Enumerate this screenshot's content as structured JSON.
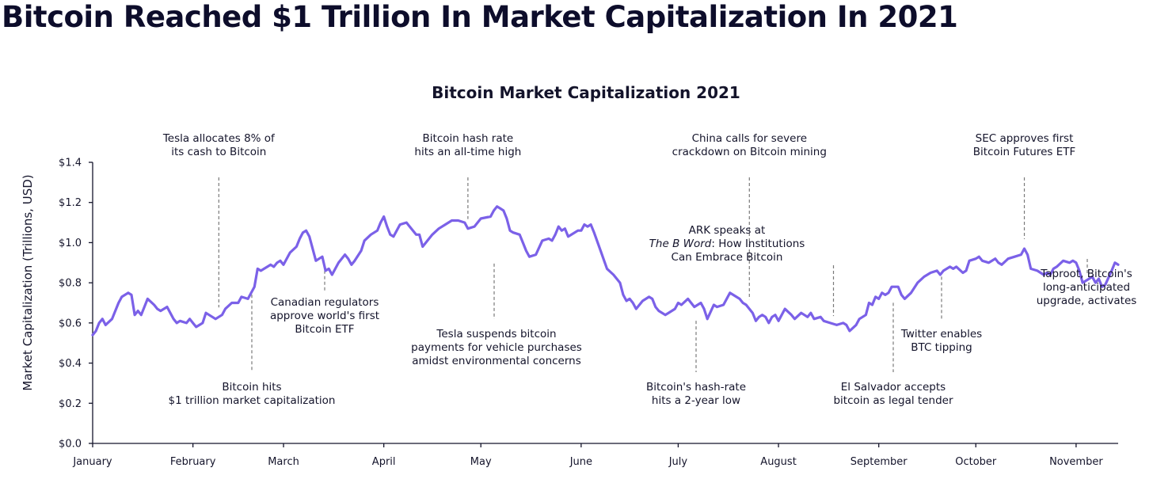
{
  "page": {
    "title": "Bitcoin Reached $1 Trillion In Market Capitalization In 2021"
  },
  "colors": {
    "series": "#7b61e8",
    "text": "#14142b",
    "leader": "#7a7a7a"
  },
  "chart_data": {
    "type": "line",
    "title": "Bitcoin Market Capitalization 2021",
    "xlabel": "",
    "ylabel": "Market Capitalization (Trillions, USD)",
    "ylim": [
      0,
      1.4
    ],
    "xlim": [
      1,
      318
    ],
    "y_ticks": [
      {
        "value": 0.0,
        "label": "$0.0"
      },
      {
        "value": 0.2,
        "label": "$0.2"
      },
      {
        "value": 0.4,
        "label": "$0.4"
      },
      {
        "value": 0.6,
        "label": "$0.6"
      },
      {
        "value": 0.8,
        "label": "$0.8"
      },
      {
        "value": 1.0,
        "label": "$1.0"
      },
      {
        "value": 1.2,
        "label": "$1.2"
      },
      {
        "value": 1.4,
        "label": "$1.4"
      }
    ],
    "x_ticks": [
      {
        "day": 1,
        "label": "January"
      },
      {
        "day": 32,
        "label": "February"
      },
      {
        "day": 60,
        "label": "March"
      },
      {
        "day": 91,
        "label": "April"
      },
      {
        "day": 121,
        "label": "May"
      },
      {
        "day": 152,
        "label": "June"
      },
      {
        "day": 182,
        "label": "July"
      },
      {
        "day": 213,
        "label": "August"
      },
      {
        "day": 244,
        "label": "September"
      },
      {
        "day": 274,
        "label": "October"
      },
      {
        "day": 305,
        "label": "November"
      }
    ],
    "grid": false,
    "legend": "none",
    "series": [
      {
        "points": [
          [
            1,
            0.54
          ],
          [
            2,
            0.56
          ],
          [
            3,
            0.6
          ],
          [
            4,
            0.62
          ],
          [
            5,
            0.59
          ],
          [
            7,
            0.62
          ],
          [
            9,
            0.7
          ],
          [
            10,
            0.73
          ],
          [
            12,
            0.75
          ],
          [
            13,
            0.74
          ],
          [
            14,
            0.64
          ],
          [
            15,
            0.66
          ],
          [
            16,
            0.64
          ],
          [
            18,
            0.72
          ],
          [
            20,
            0.69
          ],
          [
            21,
            0.67
          ],
          [
            22,
            0.66
          ],
          [
            24,
            0.68
          ],
          [
            26,
            0.62
          ],
          [
            27,
            0.6
          ],
          [
            28,
            0.61
          ],
          [
            30,
            0.6
          ],
          [
            31,
            0.62
          ],
          [
            32,
            0.6
          ],
          [
            33,
            0.58
          ],
          [
            35,
            0.6
          ],
          [
            36,
            0.65
          ],
          [
            38,
            0.63
          ],
          [
            39,
            0.62
          ],
          [
            41,
            0.64
          ],
          [
            42,
            0.67
          ],
          [
            44,
            0.7
          ],
          [
            46,
            0.7
          ],
          [
            47,
            0.73
          ],
          [
            49,
            0.72
          ],
          [
            51,
            0.78
          ],
          [
            52,
            0.87
          ],
          [
            53,
            0.86
          ],
          [
            55,
            0.88
          ],
          [
            56,
            0.89
          ],
          [
            57,
            0.88
          ],
          [
            58,
            0.9
          ],
          [
            59,
            0.91
          ],
          [
            60,
            0.89
          ],
          [
            62,
            0.95
          ],
          [
            64,
            0.98
          ],
          [
            65,
            1.02
          ],
          [
            66,
            1.05
          ],
          [
            67,
            1.06
          ],
          [
            68,
            1.03
          ],
          [
            70,
            0.91
          ],
          [
            71,
            0.92
          ],
          [
            72,
            0.93
          ],
          [
            73,
            0.86
          ],
          [
            74,
            0.87
          ],
          [
            75,
            0.84
          ],
          [
            77,
            0.9
          ],
          [
            79,
            0.94
          ],
          [
            80,
            0.92
          ],
          [
            81,
            0.89
          ],
          [
            82,
            0.91
          ],
          [
            84,
            0.96
          ],
          [
            85,
            1.01
          ],
          [
            87,
            1.04
          ],
          [
            89,
            1.06
          ],
          [
            90,
            1.1
          ],
          [
            91,
            1.13
          ],
          [
            92,
            1.08
          ],
          [
            93,
            1.04
          ],
          [
            94,
            1.03
          ],
          [
            96,
            1.09
          ],
          [
            98,
            1.1
          ],
          [
            99,
            1.08
          ],
          [
            101,
            1.04
          ],
          [
            102,
            1.04
          ],
          [
            103,
            0.98
          ],
          [
            104,
            1.0
          ],
          [
            106,
            1.04
          ],
          [
            108,
            1.07
          ],
          [
            110,
            1.09
          ],
          [
            112,
            1.11
          ],
          [
            114,
            1.11
          ],
          [
            116,
            1.1
          ],
          [
            117,
            1.07
          ],
          [
            119,
            1.08
          ],
          [
            121,
            1.12
          ],
          [
            124,
            1.13
          ],
          [
            125,
            1.16
          ],
          [
            126,
            1.18
          ],
          [
            127,
            1.17
          ],
          [
            128,
            1.16
          ],
          [
            129,
            1.12
          ],
          [
            130,
            1.06
          ],
          [
            131,
            1.05
          ],
          [
            133,
            1.04
          ],
          [
            134,
            1.0
          ],
          [
            135,
            0.96
          ],
          [
            136,
            0.93
          ],
          [
            138,
            0.94
          ],
          [
            140,
            1.01
          ],
          [
            142,
            1.02
          ],
          [
            143,
            1.01
          ],
          [
            144,
            1.04
          ],
          [
            145,
            1.08
          ],
          [
            146,
            1.06
          ],
          [
            147,
            1.07
          ],
          [
            148,
            1.03
          ],
          [
            149,
            1.04
          ],
          [
            151,
            1.06
          ],
          [
            152,
            1.06
          ],
          [
            153,
            1.09
          ],
          [
            154,
            1.08
          ],
          [
            155,
            1.09
          ],
          [
            156,
            1.05
          ],
          [
            158,
            0.96
          ],
          [
            160,
            0.87
          ],
          [
            162,
            0.84
          ],
          [
            164,
            0.8
          ],
          [
            165,
            0.74
          ],
          [
            166,
            0.71
          ],
          [
            167,
            0.72
          ],
          [
            168,
            0.7
          ],
          [
            169,
            0.67
          ],
          [
            171,
            0.71
          ],
          [
            173,
            0.73
          ],
          [
            174,
            0.72
          ],
          [
            175,
            0.68
          ],
          [
            176,
            0.66
          ],
          [
            178,
            0.64
          ],
          [
            179,
            0.65
          ],
          [
            181,
            0.67
          ],
          [
            182,
            0.7
          ],
          [
            183,
            0.69
          ],
          [
            185,
            0.72
          ],
          [
            187,
            0.68
          ],
          [
            189,
            0.7
          ],
          [
            190,
            0.67
          ],
          [
            191,
            0.62
          ],
          [
            193,
            0.69
          ],
          [
            194,
            0.68
          ],
          [
            196,
            0.69
          ],
          [
            198,
            0.75
          ],
          [
            199,
            0.74
          ],
          [
            201,
            0.72
          ],
          [
            202,
            0.7
          ],
          [
            203,
            0.69
          ],
          [
            204,
            0.67
          ],
          [
            205,
            0.65
          ],
          [
            206,
            0.61
          ],
          [
            207,
            0.63
          ],
          [
            208,
            0.64
          ],
          [
            209,
            0.63
          ],
          [
            210,
            0.6
          ],
          [
            211,
            0.63
          ],
          [
            212,
            0.64
          ],
          [
            213,
            0.61
          ],
          [
            215,
            0.67
          ],
          [
            217,
            0.64
          ],
          [
            218,
            0.62
          ],
          [
            220,
            0.65
          ],
          [
            221,
            0.64
          ],
          [
            222,
            0.63
          ],
          [
            223,
            0.65
          ],
          [
            224,
            0.62
          ],
          [
            226,
            0.63
          ],
          [
            227,
            0.61
          ],
          [
            229,
            0.6
          ],
          [
            231,
            0.59
          ],
          [
            233,
            0.6
          ],
          [
            234,
            0.59
          ],
          [
            235,
            0.56
          ],
          [
            237,
            0.59
          ],
          [
            238,
            0.62
          ],
          [
            240,
            0.64
          ],
          [
            241,
            0.7
          ],
          [
            242,
            0.69
          ],
          [
            243,
            0.73
          ],
          [
            244,
            0.72
          ],
          [
            245,
            0.75
          ],
          [
            246,
            0.74
          ],
          [
            247,
            0.75
          ],
          [
            248,
            0.78
          ],
          [
            250,
            0.78
          ],
          [
            251,
            0.74
          ],
          [
            252,
            0.72
          ],
          [
            254,
            0.75
          ],
          [
            256,
            0.8
          ],
          [
            258,
            0.83
          ],
          [
            260,
            0.85
          ],
          [
            262,
            0.86
          ],
          [
            263,
            0.84
          ],
          [
            264,
            0.86
          ],
          [
            266,
            0.88
          ],
          [
            267,
            0.87
          ],
          [
            268,
            0.88
          ],
          [
            270,
            0.85
          ],
          [
            271,
            0.86
          ],
          [
            272,
            0.91
          ],
          [
            274,
            0.92
          ],
          [
            275,
            0.93
          ],
          [
            276,
            0.91
          ],
          [
            278,
            0.9
          ],
          [
            279,
            0.91
          ],
          [
            280,
            0.92
          ],
          [
            281,
            0.9
          ],
          [
            282,
            0.89
          ],
          [
            284,
            0.92
          ],
          [
            286,
            0.93
          ],
          [
            288,
            0.94
          ],
          [
            289,
            0.97
          ],
          [
            290,
            0.94
          ],
          [
            291,
            0.87
          ],
          [
            293,
            0.86
          ],
          [
            295,
            0.84
          ],
          [
            296,
            0.85
          ],
          [
            297,
            0.84
          ],
          [
            298,
            0.87
          ],
          [
            299,
            0.88
          ],
          [
            301,
            0.91
          ],
          [
            303,
            0.9
          ],
          [
            304,
            0.91
          ],
          [
            305,
            0.9
          ],
          [
            306,
            0.86
          ],
          [
            307,
            0.8
          ],
          [
            309,
            0.82
          ],
          [
            310,
            0.83
          ],
          [
            311,
            0.8
          ],
          [
            312,
            0.82
          ],
          [
            313,
            0.78
          ],
          [
            314,
            0.79
          ],
          [
            316,
            0.86
          ],
          [
            317,
            0.9
          ],
          [
            318,
            0.89
          ]
        ]
      }
    ],
    "annotations_top": [
      {
        "day": 40,
        "lines": [
          "Tesla allocates 8% of",
          "its cash to Bitcoin"
        ]
      },
      {
        "day": 117,
        "lines": [
          "Bitcoin hash rate",
          "hits an all-time high"
        ]
      },
      {
        "day": 204,
        "lines": [
          "China calls for severe",
          "crackdown on Bitcoin mining"
        ]
      },
      {
        "day": 289,
        "lines": [
          "SEC approves first",
          "Bitcoin Futures ETF"
        ]
      }
    ],
    "annotations_mid": [
      {
        "day": 230,
        "lines": [
          "ARK speaks at",
          "The B Word: How Institutions",
          "Can Embrace Bitcoin"
        ]
      },
      {
        "day": 300,
        "lines": [
          "Taproot, Bitcoin's",
          "long-anticipated",
          "upgrade, activates"
        ]
      }
    ],
    "annotations_bottom": [
      {
        "day": 51,
        "lines": [
          "Bitcoin hits",
          "$1 trillion market capitalization"
        ]
      },
      {
        "day": 77,
        "lines": [
          "Canadian regulators",
          "approve world's first",
          "Bitcoin ETF"
        ]
      },
      {
        "day": 137,
        "lines": [
          "Tesla suspends bitcoin",
          "payments for vehicle purchases",
          "amidst environmental concerns"
        ]
      },
      {
        "day": 223,
        "lines": [
          "Bitcoin's hash-rate",
          "hits a 2-year low"
        ]
      },
      {
        "day": 251,
        "lines": [
          "El Salvador accepts",
          "bitcoin as legal tender"
        ]
      },
      {
        "day": 265,
        "lines": [
          "Twitter enables",
          "BTC tipping"
        ]
      }
    ]
  }
}
